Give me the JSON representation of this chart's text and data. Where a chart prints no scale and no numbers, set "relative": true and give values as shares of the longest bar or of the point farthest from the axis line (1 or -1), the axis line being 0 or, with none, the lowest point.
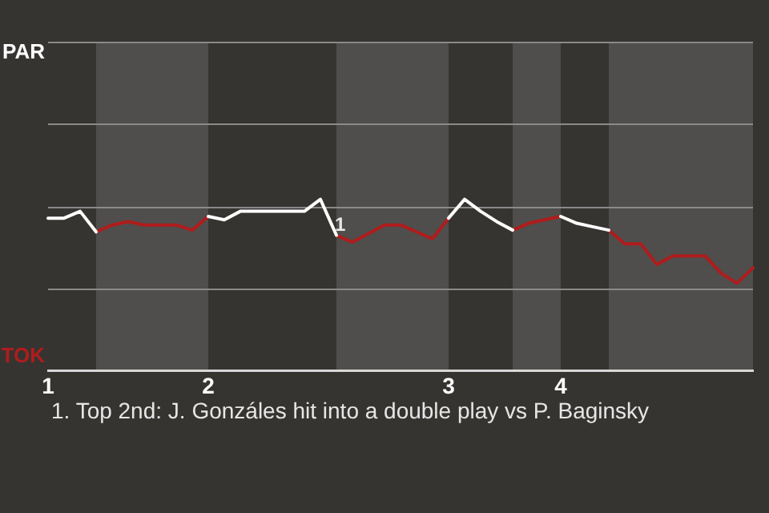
{
  "chart_data": {
    "type": "line",
    "relative": true,
    "categories": [
      "1",
      null,
      null,
      null,
      null,
      null,
      null,
      null,
      null,
      null,
      "2",
      null,
      null,
      null,
      null,
      null,
      null,
      null,
      null,
      null,
      null,
      null,
      null,
      null,
      null,
      "3",
      null,
      null,
      null,
      null,
      null,
      null,
      "4",
      null,
      null,
      null,
      null,
      null,
      null,
      null,
      null,
      null,
      null,
      null,
      null
    ],
    "legend": false,
    "ref_lines": [
      {
        "axis": "y",
        "value": 0.48,
        "color": "#8a8a8a"
      },
      {
        "axis": "y",
        "value": 0.96,
        "color": "#8a8a8a"
      },
      {
        "axis": "y",
        "value": 1.44,
        "color": "#8a8a8a"
      }
    ],
    "marker": "none",
    "line_style": "solid",
    "series": [
      {
        "color": "#ffffff",
        "values": [
          0.89,
          0.89,
          0.93,
          0.81,
          null,
          null,
          null,
          null,
          null,
          null,
          0.9,
          0.88,
          0.93,
          0.93,
          0.93,
          0.93,
          0.93,
          1,
          0.79,
          null,
          null,
          null,
          null,
          null,
          null,
          0.89,
          1,
          0.93,
          0.87,
          0.82,
          null,
          null,
          0.9,
          0.86,
          0.84,
          0.82,
          null,
          null,
          null,
          null,
          null,
          null,
          null,
          null,
          null
        ]
      },
      {
        "color": "#b01c1c",
        "values": [
          null,
          null,
          null,
          0.81,
          0.85,
          0.87,
          0.85,
          0.85,
          0.85,
          0.82,
          0.9,
          null,
          null,
          null,
          null,
          null,
          null,
          null,
          0.79,
          0.75,
          0.8,
          0.85,
          0.85,
          0.81,
          0.77,
          0.89,
          null,
          null,
          null,
          0.82,
          0.86,
          0.88,
          0.9,
          null,
          null,
          0.82,
          0.74,
          0.74,
          0.62,
          0.67,
          0.67,
          0.67,
          0.57,
          0.51,
          0.6
        ]
      }
    ],
    "annotations": [
      "PAR",
      "TOK",
      {
        "text": "1",
        "y": 0.79
      },
      "1. Top 2nd: J. Gonzáles hit into a double play vs P. Baginsky"
    ]
  }
}
